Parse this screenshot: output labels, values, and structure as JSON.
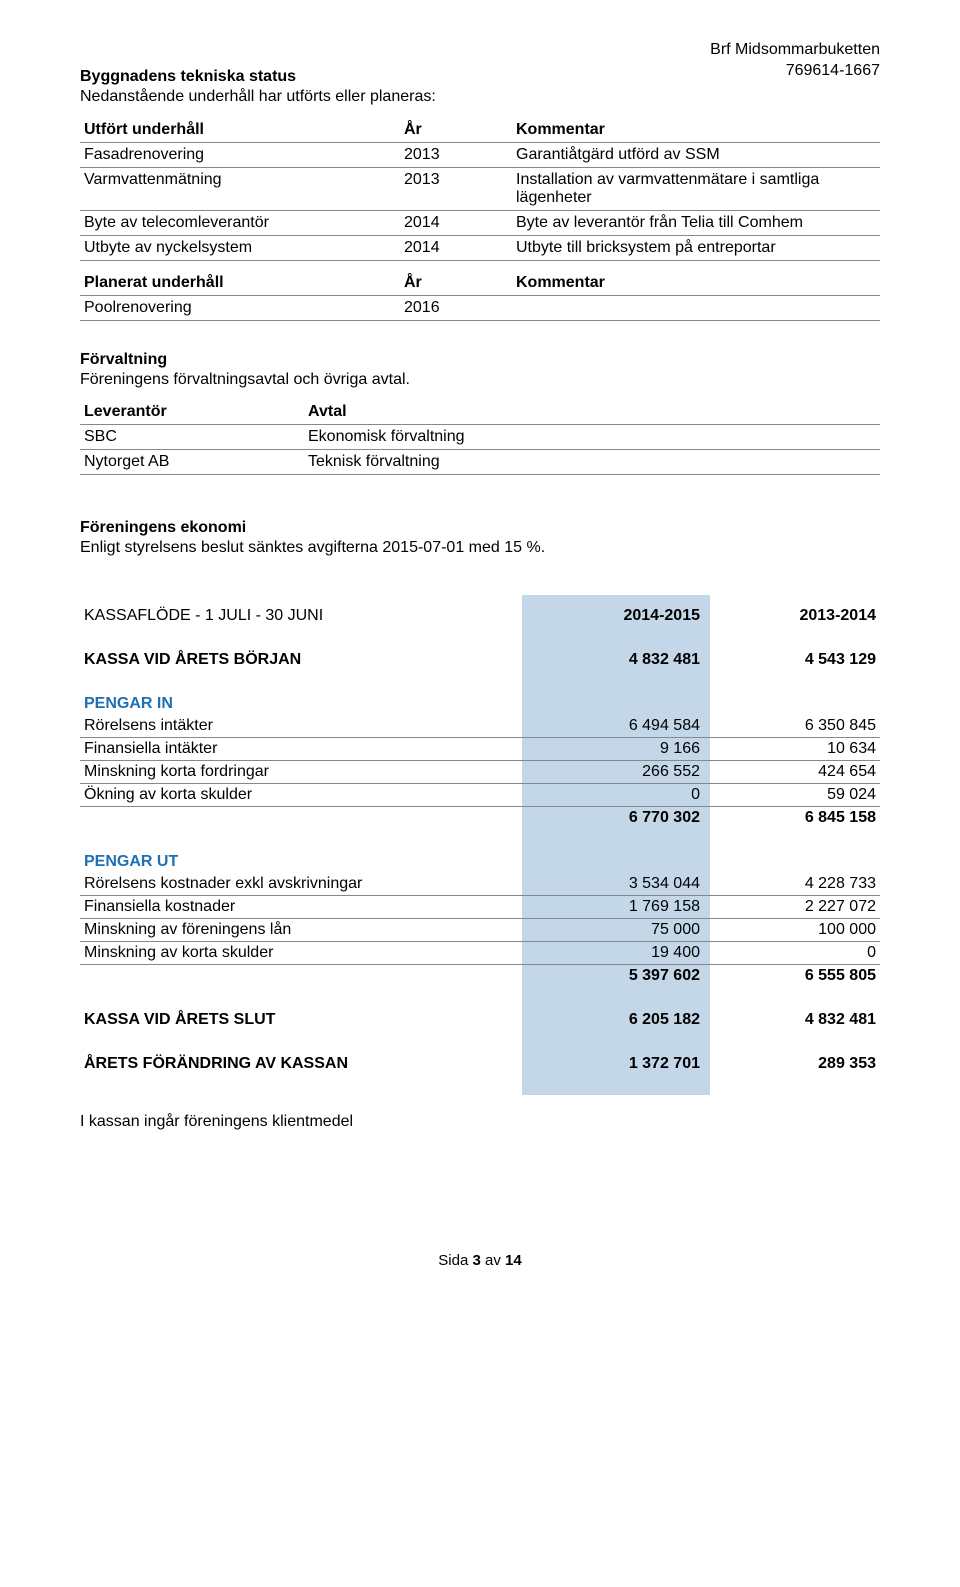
{
  "header": {
    "org_name": "Brf Midsommarbuketten",
    "org_nr": "769614-1667"
  },
  "tech_status": {
    "title": "Byggnadens tekniska status",
    "intro": "Nedanstående underhåll har utförts eller planeras:",
    "t1": {
      "h1": "Utfört underhåll",
      "h2": "År",
      "h3": "Kommentar",
      "rows": [
        {
          "a": "Fasadrenovering",
          "b": "2013",
          "c": "Garantiåtgärd utförd av SSM"
        },
        {
          "a": "Varmvattenmätning",
          "b": "2013",
          "c": "Installation av varmvattenmätare i samtliga lägenheter"
        },
        {
          "a": "Byte av telecomleverantör",
          "b": "2014",
          "c": "Byte av leverantör från Telia till Comhem"
        },
        {
          "a": "Utbyte av nyckelsystem",
          "b": "2014",
          "c": "Utbyte till bricksystem på entreportar"
        }
      ]
    },
    "t2": {
      "h1": "Planerat underhåll",
      "h2": "År",
      "h3": "Kommentar",
      "rows": [
        {
          "a": "Poolrenovering",
          "b": "2016",
          "c": ""
        }
      ]
    }
  },
  "forvaltning": {
    "title": "Förvaltning",
    "intro": "Föreningens förvaltningsavtal och övriga avtal.",
    "h1": "Leverantör",
    "h2": "Avtal",
    "rows": [
      {
        "a": "SBC",
        "b": "Ekonomisk förvaltning"
      },
      {
        "a": "Nytorget AB",
        "b": "Teknisk förvaltning"
      }
    ]
  },
  "economy": {
    "title": "Föreningens ekonomi",
    "intro": "Enligt styrelsens beslut sänktes avgifterna 2015-07-01 med 15 %."
  },
  "fin": {
    "colors": {
      "highlight": "#c3d7e8",
      "accent": "#1f6fb2",
      "rule": "#888888",
      "text": "#000000",
      "background": "#ffffff"
    },
    "period_label_1": "2014-2015",
    "period_label_2": "2013-2014",
    "rows": [
      {
        "type": "head",
        "label": "KASSAFLÖDE - 1 JULI - 30 JUNI",
        "v1": "2014-2015",
        "v2": "2013-2014"
      },
      {
        "type": "gap"
      },
      {
        "type": "bold",
        "label": "KASSA VID ÅRETS BÖRJAN",
        "v1": "4 832 481",
        "v2": "4 543 129"
      },
      {
        "type": "gap"
      },
      {
        "type": "blue",
        "label": "PENGAR IN"
      },
      {
        "type": "row-rule",
        "label": "Rörelsens intäkter",
        "v1": "6 494 584",
        "v2": "6 350 845"
      },
      {
        "type": "row-rule",
        "label": "Finansiella intäkter",
        "v1": "9 166",
        "v2": "10 634"
      },
      {
        "type": "row-rule",
        "label": "Minskning korta fordringar",
        "v1": "266 552",
        "v2": "424 654"
      },
      {
        "type": "row-rule",
        "label": "Ökning av korta skulder",
        "v1": "0",
        "v2": "59 024"
      },
      {
        "type": "bold",
        "label": "",
        "v1": "6 770 302",
        "v2": "6 845 158"
      },
      {
        "type": "gap"
      },
      {
        "type": "blue",
        "label": "PENGAR UT"
      },
      {
        "type": "row-rule",
        "label": "Rörelsens kostnader exkl avskrivningar",
        "v1": "3 534 044",
        "v2": "4 228 733"
      },
      {
        "type": "row-rule",
        "label": "Finansiella kostnader",
        "v1": "1 769 158",
        "v2": "2 227 072"
      },
      {
        "type": "row-rule",
        "label": "Minskning av föreningens lån",
        "v1": "75 000",
        "v2": "100 000"
      },
      {
        "type": "row-rule",
        "label": "Minskning av korta skulder",
        "v1": "19 400",
        "v2": "0"
      },
      {
        "type": "bold",
        "label": "",
        "v1": "5 397 602",
        "v2": "6 555 805"
      },
      {
        "type": "gap"
      },
      {
        "type": "bold",
        "label": "KASSA VID ÅRETS SLUT",
        "v1": "6 205 182",
        "v2": "4 832 481"
      },
      {
        "type": "gap"
      },
      {
        "type": "bold",
        "label": "ÅRETS FÖRÄNDRING AV KASSAN",
        "v1": "1 372 701",
        "v2": "289 353"
      }
    ],
    "footnote": "I kassan ingår föreningens klientmedel"
  },
  "footer": {
    "page_label_prefix": "Sida ",
    "page_current": "3",
    "page_label_mid": " av ",
    "page_total": "14"
  }
}
